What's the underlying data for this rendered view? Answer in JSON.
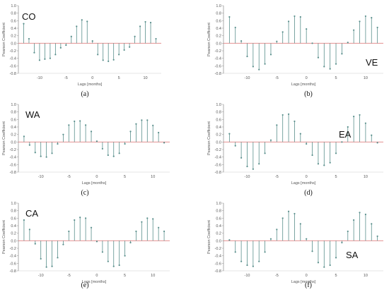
{
  "colors": {
    "stem": "#5a8f8c",
    "baseline": "#e08080",
    "axis": "#888888"
  },
  "chart_data": [
    {
      "type": "stem",
      "region": "CO",
      "caption": "(a)",
      "xlabel": "Lags [months]",
      "ylabel": "Pearson Coefficient",
      "xlim": [
        -14,
        13
      ],
      "ylim": [
        -0.8,
        1.0
      ],
      "yticks": [
        "1.0",
        "0.8",
        "0.6",
        "0.4",
        "0.2",
        "0.0",
        "-0.2",
        "-0.4",
        "-0.6",
        "-0.8"
      ],
      "xticks": [
        "-10",
        "-5",
        "0",
        "5",
        "10"
      ],
      "x": [
        -13,
        -12,
        -11,
        -10,
        -9,
        -8,
        -7,
        -6,
        -5,
        -4,
        -3,
        -2,
        -1,
        0,
        1,
        2,
        3,
        4,
        5,
        6,
        7,
        8,
        9,
        10,
        11,
        12
      ],
      "values": [
        0.52,
        0.12,
        -0.25,
        -0.45,
        -0.42,
        -0.4,
        -0.3,
        -0.12,
        -0.05,
        0.18,
        0.45,
        0.62,
        0.58,
        0.06,
        -0.3,
        -0.45,
        -0.48,
        -0.44,
        -0.3,
        -0.18,
        -0.1,
        0.18,
        0.45,
        0.57,
        0.55,
        0.12
      ]
    },
    {
      "type": "stem",
      "region": "VE",
      "caption": "(b)",
      "xlabel": "Lags [months]",
      "ylabel": "Pearson Coefficient",
      "xlim": [
        -14,
        13
      ],
      "ylim": [
        -0.8,
        1.0
      ],
      "yticks": [
        "1.0",
        "0.8",
        "0.6",
        "0.4",
        "0.2",
        "0.0",
        "-0.2",
        "-0.4",
        "-0.6",
        "-0.8"
      ],
      "xticks": [
        "-10",
        "-5",
        "0",
        "5",
        "10"
      ],
      "x": [
        -13,
        -12,
        -11,
        -10,
        -9,
        -8,
        -7,
        -6,
        -5,
        -4,
        -3,
        -2,
        -1,
        0,
        1,
        2,
        3,
        4,
        5,
        6,
        7,
        8,
        9,
        10,
        11,
        12
      ],
      "values": [
        0.7,
        0.42,
        0.06,
        -0.35,
        -0.62,
        -0.7,
        -0.55,
        -0.3,
        0.05,
        0.3,
        0.58,
        0.72,
        0.7,
        0.38,
        0.0,
        -0.38,
        -0.62,
        -0.68,
        -0.55,
        -0.28,
        0.02,
        0.35,
        0.58,
        0.72,
        0.68,
        0.42
      ]
    },
    {
      "type": "stem",
      "region": "WA",
      "caption": "(c)",
      "xlabel": "Lags [months]",
      "ylabel": "Pearson Coefficient",
      "xlim": [
        -14,
        13
      ],
      "ylim": [
        -0.8,
        1.0
      ],
      "yticks": [
        "1.0",
        "0.8",
        "0.6",
        "0.4",
        "0.2",
        "0.0",
        "-0.2",
        "-0.4",
        "-0.6",
        "-0.8"
      ],
      "xticks": [
        "-10",
        "-5",
        "0",
        "5",
        "10"
      ],
      "x": [
        -13,
        -12,
        -11,
        -10,
        -9,
        -8,
        -7,
        -6,
        -5,
        -4,
        -3,
        -2,
        -1,
        0,
        1,
        2,
        3,
        4,
        5,
        6,
        7,
        8,
        9,
        10,
        11,
        12
      ],
      "values": [
        0.15,
        -0.08,
        -0.28,
        -0.38,
        -0.4,
        -0.3,
        -0.05,
        0.2,
        0.45,
        0.55,
        0.56,
        0.45,
        0.28,
        0.02,
        -0.18,
        -0.35,
        -0.38,
        -0.3,
        -0.05,
        0.28,
        0.48,
        0.58,
        0.58,
        0.44,
        0.25,
        -0.02
      ]
    },
    {
      "type": "stem",
      "region": "EA",
      "caption": "(d)",
      "xlabel": "Lags [months]",
      "ylabel": "Pearson Coefficient",
      "xlim": [
        -14,
        13
      ],
      "ylim": [
        -0.8,
        1.0
      ],
      "yticks": [
        "1.0",
        "0.8",
        "0.6",
        "0.4",
        "0.2",
        "0.0",
        "-0.2",
        "-0.4",
        "-0.6",
        "-0.8"
      ],
      "xticks": [
        "-10",
        "-5",
        "0",
        "5",
        "10"
      ],
      "x": [
        -13,
        -12,
        -11,
        -10,
        -9,
        -8,
        -7,
        -6,
        -5,
        -4,
        -3,
        -2,
        -1,
        0,
        1,
        2,
        3,
        4,
        5,
        6,
        7,
        8,
        9,
        10,
        11,
        12
      ],
      "values": [
        0.22,
        -0.1,
        -0.42,
        -0.65,
        -0.72,
        -0.58,
        -0.3,
        0.05,
        0.45,
        0.72,
        0.74,
        0.55,
        0.22,
        -0.05,
        -0.35,
        -0.58,
        -0.62,
        -0.55,
        -0.3,
        0.0,
        0.4,
        0.68,
        0.72,
        0.5,
        0.18,
        -0.02
      ]
    },
    {
      "type": "stem",
      "region": "CA",
      "caption": "(e)",
      "xlabel": "Lags [months]",
      "ylabel": "Pearson Coefficient",
      "xlim": [
        -14,
        13
      ],
      "ylim": [
        -0.8,
        1.0
      ],
      "yticks": [
        "1.0",
        "0.8",
        "0.6",
        "0.4",
        "0.2",
        "0.0",
        "-0.2",
        "-0.4",
        "-0.6",
        "-0.8"
      ],
      "xticks": [
        "-10",
        "-5",
        "0",
        "5",
        "10"
      ],
      "x": [
        -13,
        -12,
        -11,
        -10,
        -9,
        -8,
        -7,
        -6,
        -5,
        -4,
        -3,
        -2,
        -1,
        0,
        1,
        2,
        3,
        4,
        5,
        6,
        7,
        8,
        9,
        10,
        11,
        12
      ],
      "values": [
        0.55,
        0.3,
        -0.08,
        -0.48,
        -0.7,
        -0.68,
        -0.45,
        -0.1,
        0.25,
        0.55,
        0.62,
        0.6,
        0.35,
        -0.02,
        -0.3,
        -0.55,
        -0.68,
        -0.65,
        -0.4,
        -0.05,
        0.25,
        0.5,
        0.6,
        0.58,
        0.35,
        0.25
      ]
    },
    {
      "type": "stem",
      "region": "SA",
      "caption": "(f)",
      "xlabel": "Lags [months]",
      "ylabel": "Pearson Coefficient",
      "xlim": [
        -14,
        13
      ],
      "ylim": [
        -0.8,
        1.0
      ],
      "yticks": [
        "1.0",
        "0.8",
        "0.6",
        "0.4",
        "0.2",
        "0.0",
        "-0.2",
        "-0.4",
        "-0.6",
        "-0.8"
      ],
      "xticks": [
        "-10",
        "-5",
        "0",
        "5",
        "10"
      ],
      "x": [
        -13,
        -12,
        -11,
        -10,
        -9,
        -8,
        -7,
        -6,
        -5,
        -4,
        -3,
        -2,
        -1,
        0,
        1,
        2,
        3,
        4,
        5,
        6,
        7,
        8,
        9,
        10,
        11,
        12
      ],
      "values": [
        0.02,
        -0.3,
        -0.55,
        -0.65,
        -0.68,
        -0.55,
        -0.3,
        0.05,
        0.3,
        0.6,
        0.78,
        0.72,
        0.45,
        0.05,
        -0.28,
        -0.58,
        -0.7,
        -0.65,
        -0.45,
        -0.05,
        0.25,
        0.55,
        0.75,
        0.7,
        0.45,
        0.12
      ]
    }
  ]
}
